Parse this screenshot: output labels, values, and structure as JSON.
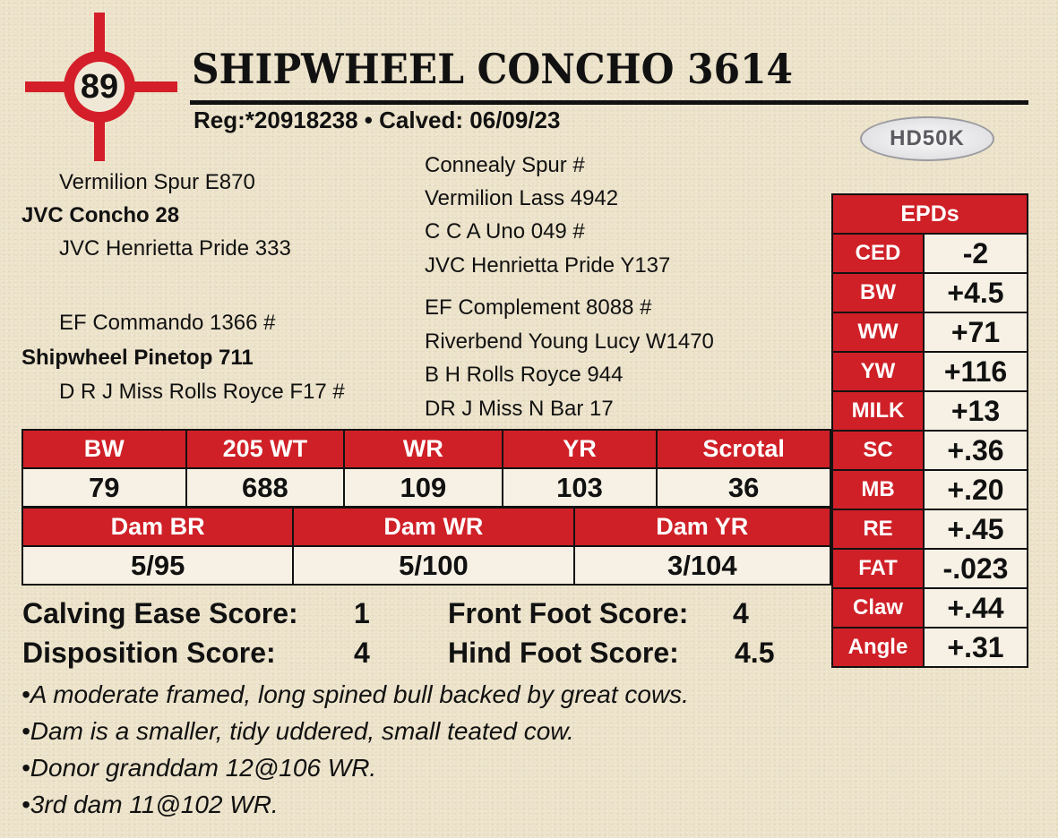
{
  "header": {
    "score": "89",
    "name": "SHIPWHEEL CONCHO 3614",
    "reg": "Reg:*20918238 • Calved: 06/09/23",
    "badge": "HD50K"
  },
  "pedigree": {
    "sire_sire": "Vermilion Spur E870",
    "sire": "JVC Concho 28",
    "sire_dam": "JVC Henrietta Pride 333",
    "dam_sire": "EF Commando 1366 #",
    "dam": "Shipwheel Pinetop 711",
    "dam_dam": "D R J Miss Rolls Royce F17 #",
    "gg": [
      "Connealy Spur #",
      "Vermilion Lass 4942",
      "C C A Uno 049 #",
      "JVC Henrietta Pride Y137",
      "EF Complement 8088 #",
      "Riverbend Young Lucy W1470",
      "B H Rolls Royce 944",
      "DR J Miss N Bar 17"
    ]
  },
  "epds": {
    "title": "EPDs",
    "rows": [
      {
        "label": "CED",
        "value": "-2"
      },
      {
        "label": "BW",
        "value": "+4.5"
      },
      {
        "label": "WW",
        "value": "+71"
      },
      {
        "label": "YW",
        "value": "+116"
      },
      {
        "label": "MILK",
        "value": "+13"
      },
      {
        "label": "SC",
        "value": "+.36"
      },
      {
        "label": "MB",
        "value": "+.20"
      },
      {
        "label": "RE",
        "value": "+.45"
      },
      {
        "label": "FAT",
        "value": "-.023"
      },
      {
        "label": "Claw",
        "value": "+.44"
      },
      {
        "label": "Angle",
        "value": "+.31"
      }
    ]
  },
  "stats": {
    "headers": [
      "BW",
      "205 WT",
      "WR",
      "YR",
      "Scrotal"
    ],
    "values": [
      "79",
      "688",
      "109",
      "103",
      "36"
    ]
  },
  "dam_stats": {
    "headers": [
      "Dam BR",
      "Dam WR",
      "Dam YR"
    ],
    "values": [
      "5/95",
      "5/100",
      "3/104"
    ]
  },
  "scores": {
    "calving_label": "Calving Ease Score:",
    "calving": "1",
    "disp_label": "Disposition Score:",
    "disp": "4",
    "front_label": "Front Foot Score:",
    "front": "4",
    "hind_label": "Hind Foot Score:",
    "hind": "4.5"
  },
  "notes": [
    "•A moderate framed, long spined bull backed by great cows.",
    "•Dam is a smaller, tidy uddered, small teated cow.",
    "•Donor granddam 12@106 WR.",
    "•3rd dam 11@102 WR."
  ],
  "colors": {
    "red": "#cf2027",
    "background": "#ece2c9"
  }
}
